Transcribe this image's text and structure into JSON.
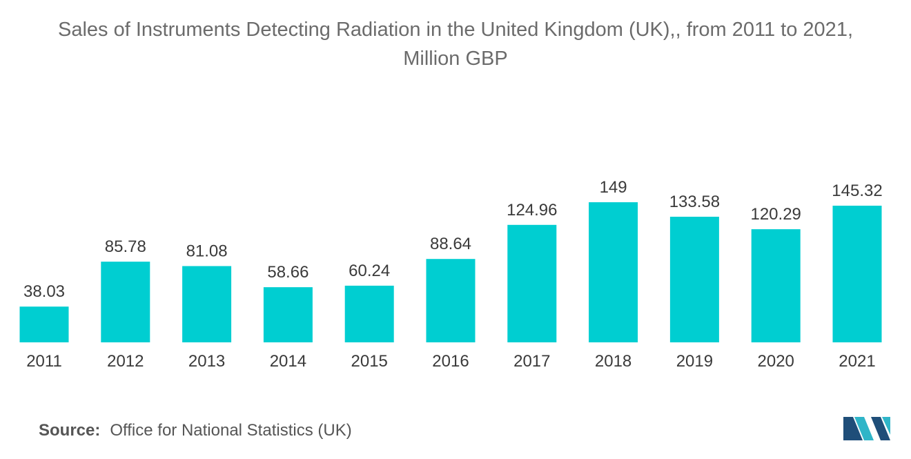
{
  "chart_data": {
    "type": "bar",
    "title": "Sales of Instruments Detecting Radiation in the United Kingdom (UK),, from 2011 to 2021,",
    "subtitle": "Million GBP",
    "categories": [
      "2011",
      "2012",
      "2013",
      "2014",
      "2015",
      "2016",
      "2017",
      "2018",
      "2019",
      "2020",
      "2021"
    ],
    "values": [
      38.03,
      85.78,
      81.08,
      58.66,
      60.24,
      88.64,
      124.96,
      149,
      133.58,
      120.29,
      145.32
    ],
    "value_labels": [
      "38.03",
      "85.78",
      "81.08",
      "58.66",
      "60.24",
      "88.64",
      "124.96",
      "149",
      "133.58",
      "120.29",
      "145.32"
    ],
    "xlabel": "",
    "ylabel": "",
    "ylim": [
      0,
      149
    ],
    "grid": false,
    "legend": "none",
    "bar_color": "#00CED1"
  },
  "source": {
    "label": "Source:",
    "text": "Office for National Statistics (UK)"
  },
  "logo": {
    "icon": "mordor-intelligence-logo-icon",
    "color_dark": "#1f4e79",
    "color_light": "#2fb5c8"
  }
}
